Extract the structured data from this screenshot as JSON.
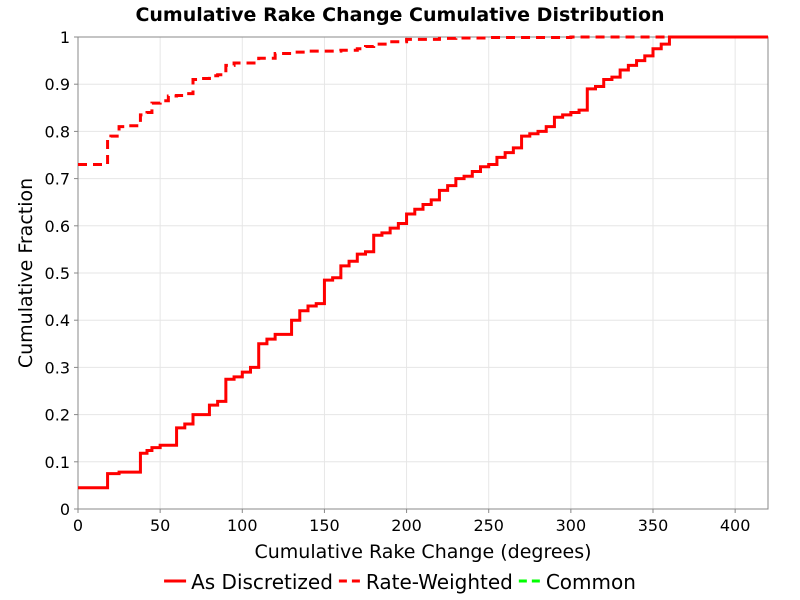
{
  "chart_data": {
    "type": "line",
    "title": "Cumulative Rake Change Cumulative Distribution",
    "xlabel": "Cumulative Rake Change (degrees)",
    "ylabel": "Cumulative Fraction",
    "xlim": [
      0,
      420
    ],
    "ylim": [
      0,
      1
    ],
    "x_ticks": [
      "0",
      "50",
      "100",
      "150",
      "200",
      "250",
      "300",
      "350",
      "400"
    ],
    "y_ticks": [
      "0",
      "0.1",
      "0.2",
      "0.3",
      "0.4",
      "0.5",
      "0.6",
      "0.7",
      "0.8",
      "0.9",
      "1"
    ],
    "grid": true,
    "legend_position": "bottom",
    "step": true,
    "series": [
      {
        "name": "As Discretized",
        "color": "#ff0000",
        "dash": "solid",
        "x": [
          0,
          18,
          25,
          38,
          42,
          45,
          50,
          55,
          60,
          65,
          70,
          80,
          85,
          90,
          95,
          100,
          105,
          110,
          115,
          120,
          125,
          130,
          135,
          140,
          145,
          150,
          155,
          160,
          165,
          170,
          175,
          180,
          185,
          190,
          195,
          200,
          205,
          210,
          215,
          220,
          225,
          230,
          235,
          240,
          245,
          250,
          255,
          260,
          265,
          270,
          275,
          280,
          285,
          290,
          295,
          300,
          305,
          310,
          315,
          320,
          325,
          330,
          335,
          340,
          345,
          350,
          355,
          360,
          365,
          420
        ],
        "y": [
          0.045,
          0.075,
          0.078,
          0.118,
          0.124,
          0.13,
          0.135,
          0.135,
          0.172,
          0.18,
          0.2,
          0.22,
          0.228,
          0.275,
          0.28,
          0.29,
          0.3,
          0.35,
          0.36,
          0.37,
          0.37,
          0.4,
          0.42,
          0.43,
          0.435,
          0.485,
          0.49,
          0.515,
          0.525,
          0.54,
          0.545,
          0.58,
          0.585,
          0.595,
          0.605,
          0.625,
          0.635,
          0.645,
          0.655,
          0.675,
          0.685,
          0.7,
          0.705,
          0.715,
          0.725,
          0.73,
          0.745,
          0.755,
          0.765,
          0.79,
          0.795,
          0.8,
          0.81,
          0.83,
          0.835,
          0.84,
          0.845,
          0.89,
          0.895,
          0.91,
          0.915,
          0.93,
          0.94,
          0.95,
          0.96,
          0.975,
          0.985,
          1.0,
          1.0,
          1.0
        ]
      },
      {
        "name": "Rate-Weighted",
        "color": "#ff0000",
        "dash": "dashed",
        "x": [
          0,
          18,
          20,
          25,
          30,
          38,
          42,
          45,
          50,
          55,
          60,
          65,
          70,
          75,
          80,
          85,
          90,
          95,
          100,
          110,
          120,
          130,
          140,
          150,
          160,
          170,
          175,
          180,
          190,
          200,
          210,
          220,
          230,
          250,
          270,
          300,
          330,
          360,
          420
        ],
        "y": [
          0.73,
          0.785,
          0.79,
          0.81,
          0.812,
          0.835,
          0.84,
          0.86,
          0.865,
          0.875,
          0.876,
          0.88,
          0.91,
          0.912,
          0.918,
          0.92,
          0.94,
          0.945,
          0.945,
          0.955,
          0.965,
          0.968,
          0.97,
          0.97,
          0.972,
          0.975,
          0.98,
          0.985,
          0.99,
          0.995,
          0.995,
          0.997,
          0.998,
          0.999,
          0.999,
          1.0,
          1.0,
          1.0,
          1.0
        ]
      },
      {
        "name": "Common",
        "color": "#00ff00",
        "dash": "dashed",
        "x": [],
        "y": []
      }
    ]
  }
}
